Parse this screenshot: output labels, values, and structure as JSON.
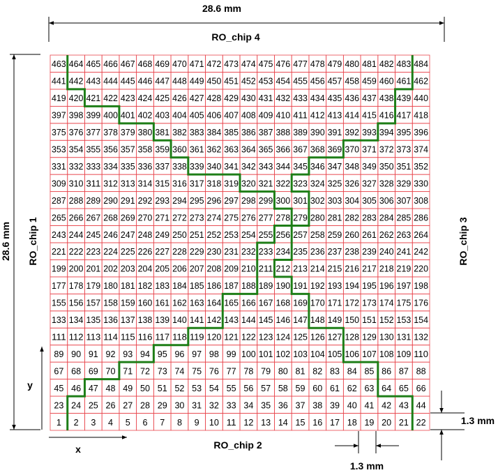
{
  "grid": {
    "columns": 22,
    "rows": 22,
    "start_number": 1,
    "grid_line_color": "#e8464d",
    "partition_line_color": "#1e7e17"
  },
  "labels": {
    "top_dimension": "28.6 mm",
    "left_dimension": "28.6 mm",
    "chip_top": "RO_chip 4",
    "chip_left": "RO_chip 1",
    "chip_right": "RO_chip 3",
    "chip_bottom": "RO_chip 2",
    "axis_x": "x",
    "axis_y": "y",
    "cell_height_dim": "1.3 mm",
    "cell_width_dim": "1.3 mm"
  },
  "partition_paths": [
    {
      "name": "left-boundary",
      "points": [
        [
          1,
          0
        ],
        [
          1,
          2
        ],
        [
          2,
          2
        ],
        [
          2,
          3
        ],
        [
          4,
          3
        ],
        [
          4,
          4
        ],
        [
          6,
          4
        ],
        [
          6,
          5
        ],
        [
          8,
          5
        ],
        [
          8,
          6
        ],
        [
          10,
          6
        ],
        [
          10,
          8
        ],
        [
          12,
          8
        ],
        [
          12,
          11
        ],
        [
          13,
          11
        ],
        [
          13,
          12
        ],
        [
          14,
          12
        ],
        [
          14,
          13
        ],
        [
          13,
          13
        ],
        [
          13,
          14
        ],
        [
          11,
          14
        ],
        [
          11,
          15
        ],
        [
          8,
          15
        ],
        [
          8,
          16
        ],
        [
          7,
          16
        ],
        [
          7,
          17
        ],
        [
          6,
          17
        ],
        [
          6,
          18
        ],
        [
          4,
          18
        ],
        [
          4,
          19
        ],
        [
          2,
          19
        ],
        [
          2,
          20
        ],
        [
          1,
          20
        ],
        [
          1,
          22
        ]
      ]
    },
    {
      "name": "right-boundary",
      "points": [
        [
          21,
          0
        ],
        [
          21,
          2
        ],
        [
          19,
          2
        ],
        [
          19,
          4
        ],
        [
          17,
          4
        ],
        [
          17,
          6
        ],
        [
          15,
          6
        ],
        [
          15,
          8
        ],
        [
          14,
          8
        ],
        [
          14,
          9
        ],
        [
          13,
          9
        ],
        [
          13,
          10
        ],
        [
          14,
          10
        ],
        [
          14,
          12
        ],
        [
          15,
          12
        ],
        [
          15,
          14
        ],
        [
          14,
          14
        ],
        [
          14,
          15
        ],
        [
          15,
          15
        ],
        [
          15,
          16
        ],
        [
          17,
          16
        ],
        [
          17,
          17
        ],
        [
          19,
          17
        ],
        [
          19,
          18
        ],
        [
          20,
          18
        ],
        [
          20,
          20
        ],
        [
          21,
          20
        ],
        [
          21,
          22
        ]
      ]
    }
  ]
}
